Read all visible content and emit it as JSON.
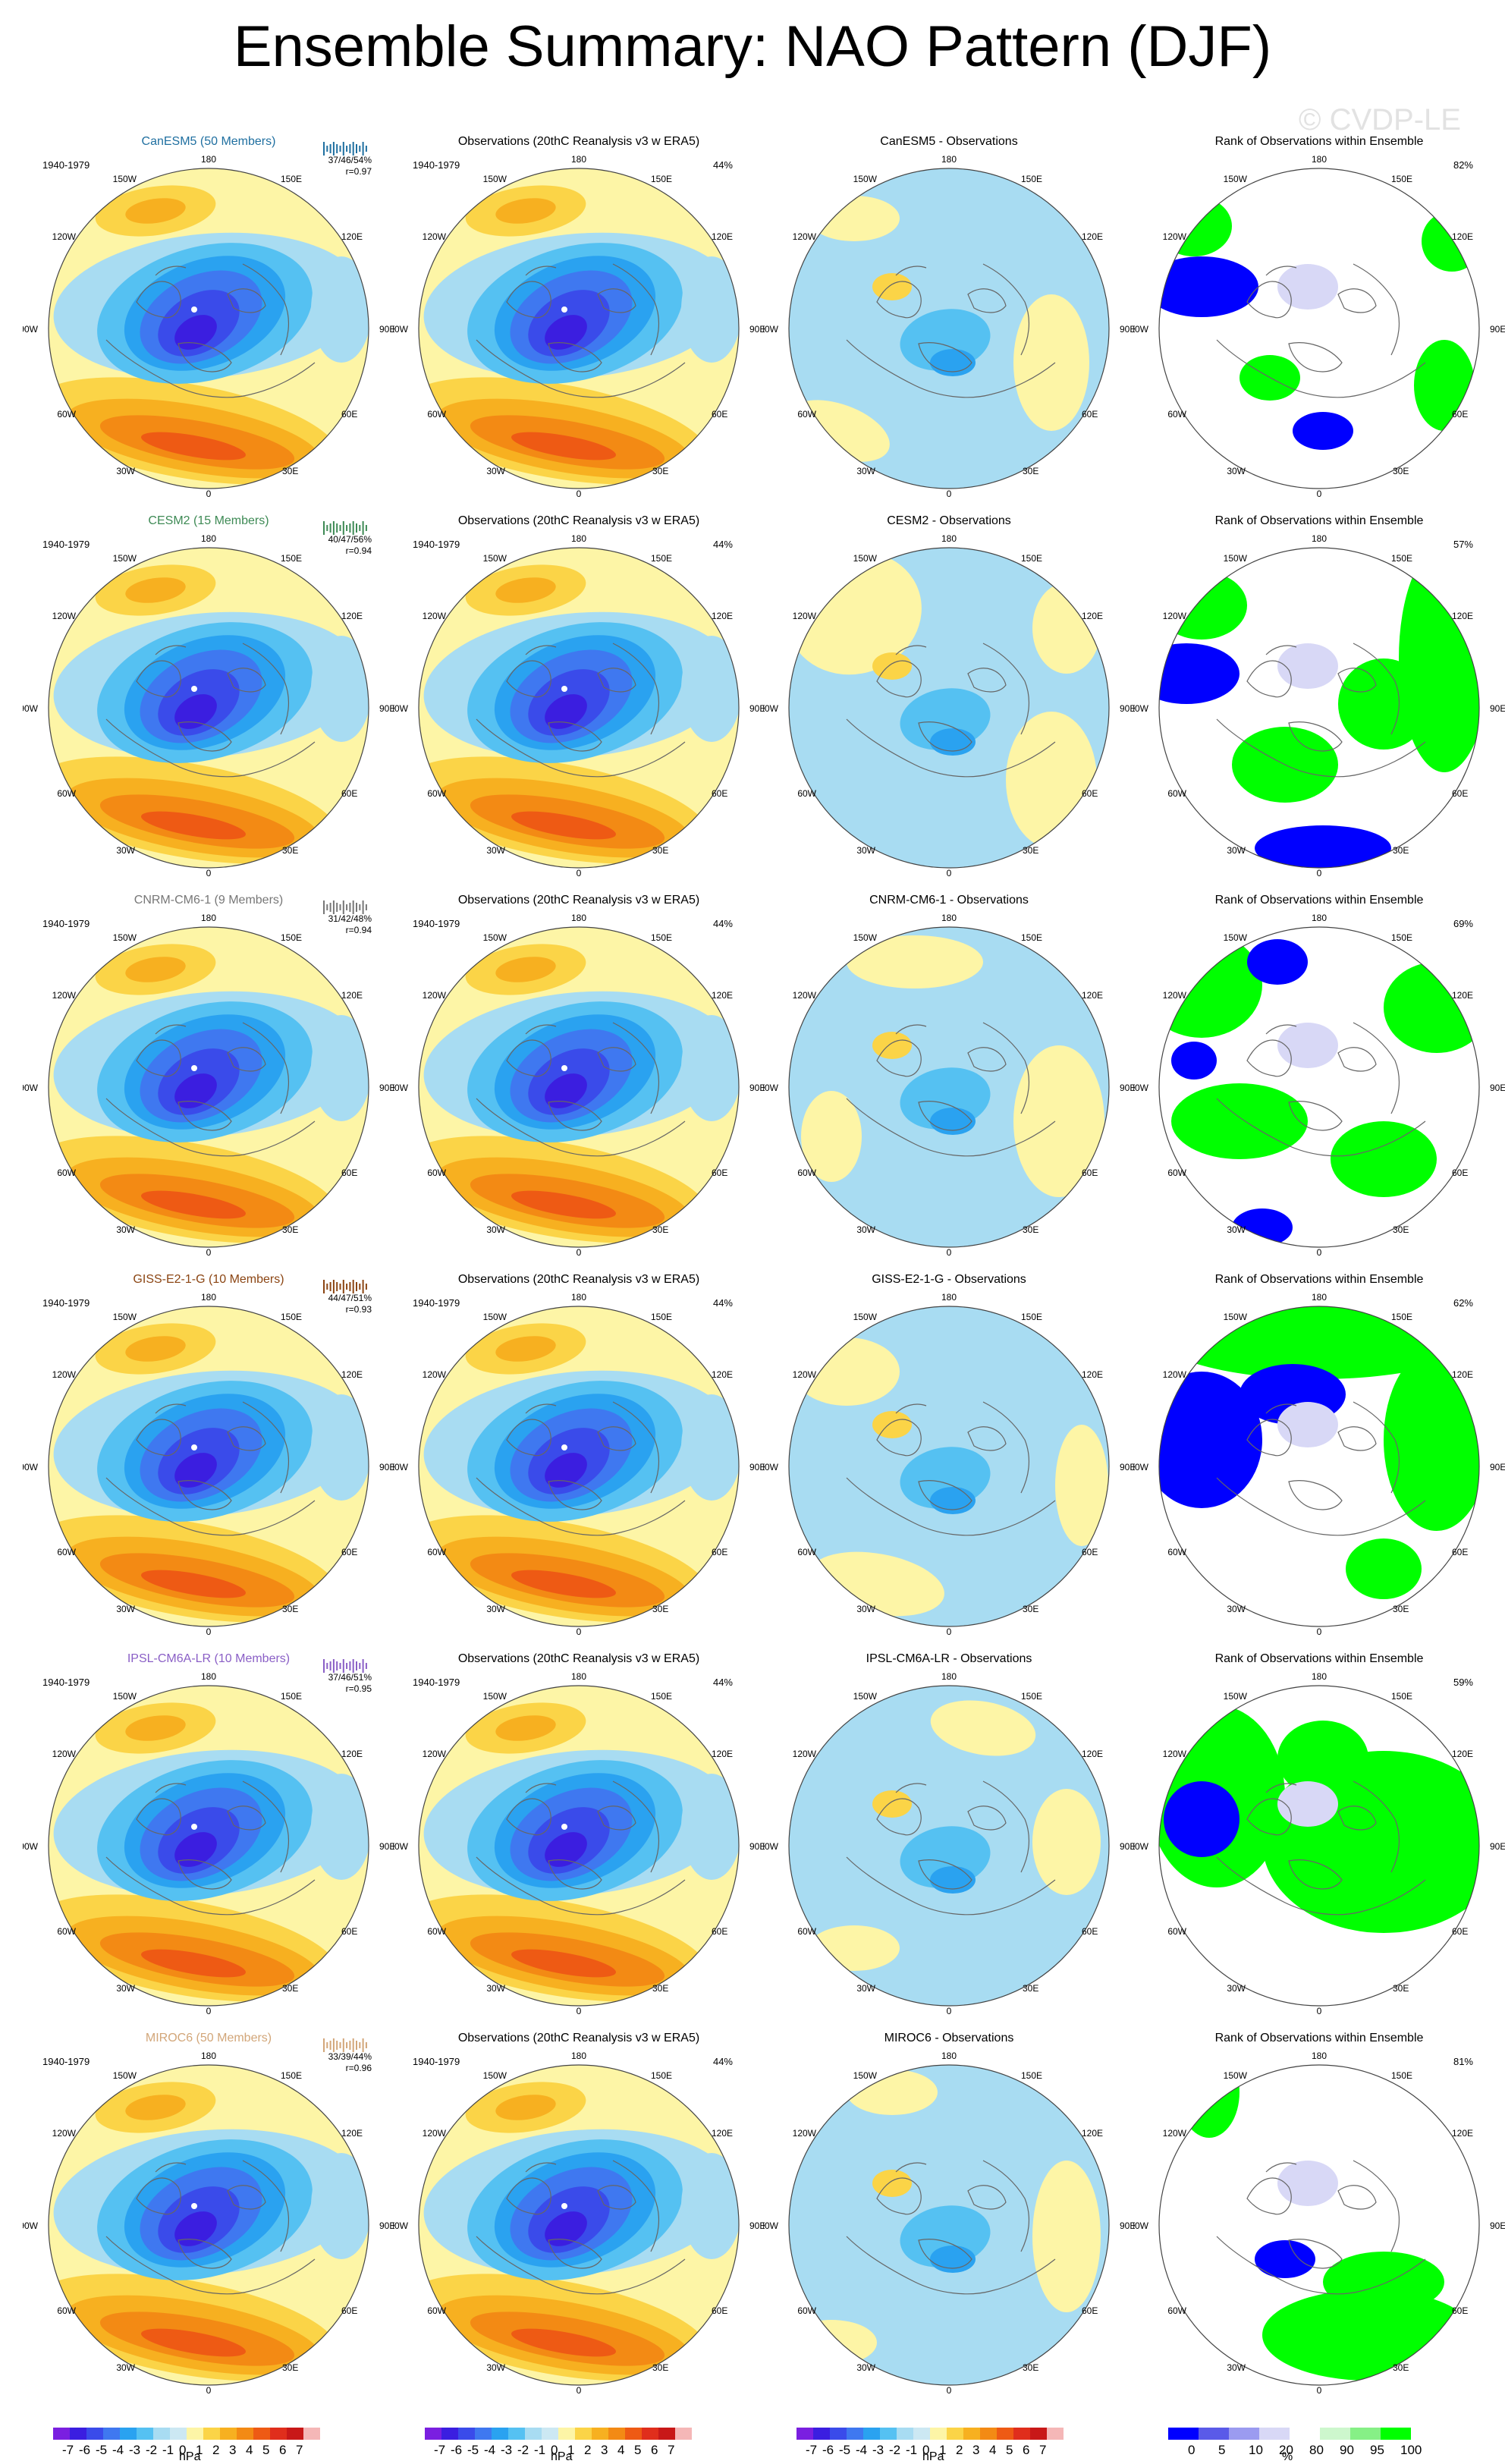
{
  "title": "Ensemble Summary: NAO Pattern (DJF)",
  "watermark": "© CVDP-LE",
  "period": "1940-1979",
  "obs_title": "Observations (20thC Reanalysis v3 w ERA5)",
  "obs_pct": "44%",
  "rank_title": "Rank of Observations within Ensemble",
  "lon_labels": {
    "n": "180",
    "nw1": "150W",
    "nw2": "120W",
    "w": "90W",
    "sw1": "60W",
    "sw2": "30W",
    "s": "0",
    "se2": "30E",
    "se1": "60E",
    "e": "90E",
    "ne2": "120E",
    "ne1": "150E"
  },
  "colors": {
    "ocean_bg": "#fdf5a6",
    "land_line": "#666666"
  },
  "chart_data": {
    "type": "polar_contour_panels",
    "variable": "NAO Pattern",
    "season": "DJF",
    "rows": [
      {
        "model": "CanESM5 (50 Members)",
        "model_color": "#1f6fa0",
        "stats": "37/46/54%",
        "r": "r=0.97",
        "diff_title": "CanESM5 - Observations",
        "rank_pct": "82%"
      },
      {
        "model": "CESM2 (15 Members)",
        "model_color": "#3e8a55",
        "stats": "40/47/56%",
        "r": "r=0.94",
        "diff_title": "CESM2 - Observations",
        "rank_pct": "57%"
      },
      {
        "model": "CNRM-CM6-1 (9 Members)",
        "model_color": "#777777",
        "stats": "31/42/48%",
        "r": "r=0.94",
        "diff_title": "CNRM-CM6-1 - Observations",
        "rank_pct": "69%"
      },
      {
        "model": "GISS-E2-1-G (10 Members)",
        "model_color": "#8b4513",
        "stats": "44/47/51%",
        "r": "r=0.93",
        "diff_title": "GISS-E2-1-G - Observations",
        "rank_pct": "62%"
      },
      {
        "model": "IPSL-CM6A-LR (10 Members)",
        "model_color": "#8a5fc6",
        "stats": "37/46/51%",
        "r": "r=0.95",
        "diff_title": "IPSL-CM6A-LR - Observations",
        "rank_pct": "59%"
      },
      {
        "model": "MIROC6 (50 Members)",
        "model_color": "#d2a679",
        "stats": "33/39/44%",
        "r": "r=0.96",
        "diff_title": "MIROC6 - Observations",
        "rank_pct": "81%"
      }
    ],
    "colorbar_hpa": {
      "unit": "hPa",
      "tick_labels": [
        "-7",
        "-6",
        "-5",
        "-4",
        "-3",
        "-2",
        "-1",
        "0",
        "1",
        "2",
        "3",
        "4",
        "5",
        "6",
        "7"
      ],
      "colors": [
        "#7a1fe0",
        "#3b1ee0",
        "#3a4bea",
        "#3f78f0",
        "#2aa2f0",
        "#55c1f2",
        "#a8dcf2",
        "#cce8f3",
        "#fdf5a6",
        "#fbd447",
        "#f7b020",
        "#f38a14",
        "#ee5a14",
        "#e02e1c",
        "#c81818",
        "#f5b7b7"
      ]
    },
    "colorbar_rank": {
      "unit": "%",
      "tick_labels": [
        "0",
        "5",
        "10",
        "20",
        "80",
        "90",
        "95",
        "100"
      ],
      "colors": [
        "#0000ff",
        "#5a5ae8",
        "#9b9bf0",
        "#d8d8f6",
        "#ffffff",
        "#cdf7cd",
        "#86f086",
        "#00ff00"
      ]
    }
  }
}
